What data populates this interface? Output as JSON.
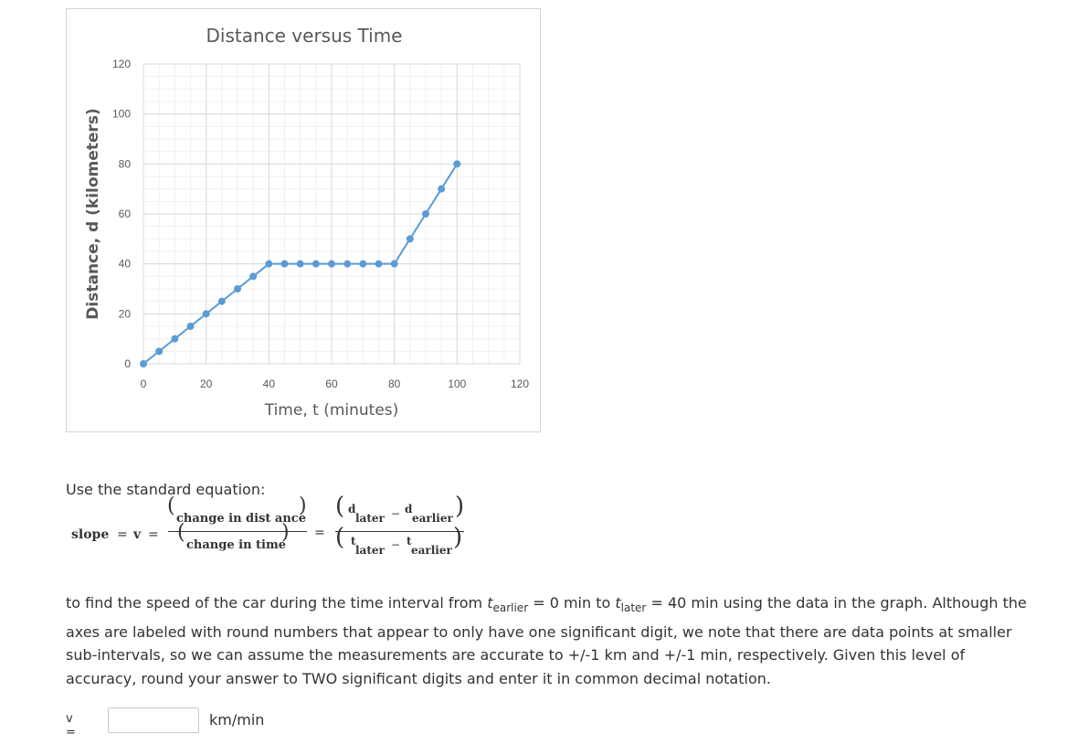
{
  "chart_data": {
    "type": "line",
    "title": "Distance versus Time",
    "xlabel": "Time, t  (minutes)",
    "ylabel": "Distance, d  (kilometers)",
    "xlim": [
      0,
      120
    ],
    "ylim": [
      0,
      120
    ],
    "xticks": [
      0,
      20,
      40,
      60,
      80,
      100,
      120
    ],
    "yticks": [
      0,
      20,
      40,
      60,
      80,
      100,
      120
    ],
    "grid": true,
    "series": [
      {
        "color": "#5b9bd5",
        "x": [
          0,
          5,
          10,
          15,
          20,
          25,
          30,
          35,
          40,
          45,
          50,
          55,
          60,
          65,
          70,
          75,
          80,
          85,
          90,
          95,
          100
        ],
        "y": [
          0,
          5,
          10,
          15,
          20,
          25,
          30,
          35,
          40,
          40,
          40,
          40,
          40,
          40,
          40,
          40,
          40,
          50,
          60,
          70,
          80
        ]
      }
    ]
  },
  "text": {
    "intro": "Use the standard equation:",
    "slope": "slope",
    "eq1": "=",
    "v": "v",
    "eq2": "=",
    "num1": "change in dist ance",
    "den1": "change in time",
    "eq3": "=",
    "d": "d",
    "later": "later",
    "minus": "−",
    "earlier": "earlier",
    "t": "t",
    "p1": "to find the speed of the car during the time interval from ",
    "t_sym1": "t",
    "sub_earlier": "earlier",
    "p2": " = 0 min to ",
    "t_sym2": "t",
    "sub_later": "later",
    "p3": " = 40 min using the data in the graph. Although the axes are labeled with round numbers that appear to only have one significant digit, we note that there are data points at smaller sub-intervals, so we can assume the measurements are accurate to +/-1 km and +/-1 min, respectively.  Given this level of accuracy, round your answer to TWO significant digits and enter it in common decimal notation."
  },
  "answer": {
    "label": "v =",
    "value": "",
    "unit": "km/min"
  }
}
